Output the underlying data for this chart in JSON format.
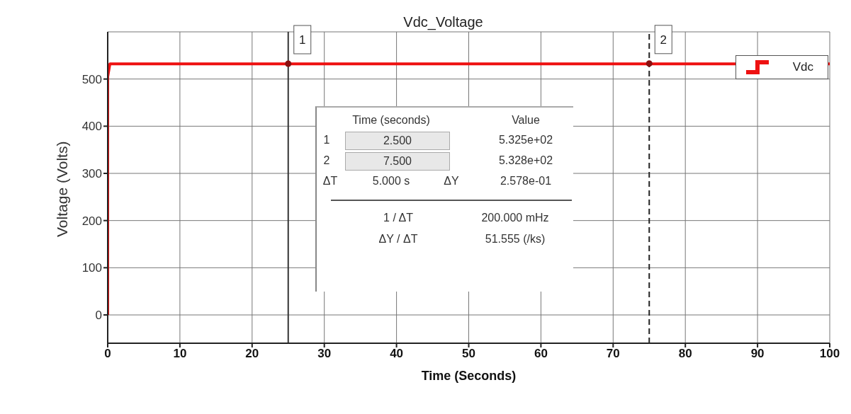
{
  "chart_data": {
    "type": "line",
    "title": "Vdc_Voltage",
    "xlabel": "Time (Seconds)",
    "ylabel": "Voltage (Volts)",
    "series": [
      {
        "name": "Vdc",
        "color": "#ee1111",
        "x": [
          0,
          0,
          0.3,
          100
        ],
        "values": [
          0,
          505,
          532,
          532
        ]
      },
      {
        "type": "scatter",
        "marker": "circle",
        "color": "#8b1010",
        "x": [
          25,
          75
        ],
        "values": [
          532.5,
          532.8
        ]
      }
    ],
    "xlim": [
      0,
      100
    ],
    "xticks": [
      0,
      10,
      20,
      30,
      40,
      50,
      60,
      70,
      80,
      90,
      100
    ],
    "ylim": [
      -60,
      600
    ],
    "yticks": [
      0,
      100,
      200,
      300,
      400,
      500
    ],
    "grid": true,
    "legend": "top right",
    "line_style": "solid",
    "ref_lines": [
      {
        "axis": "x",
        "value": 25,
        "line_style": "solid",
        "color": "#333333"
      },
      {
        "axis": "x",
        "value": 75,
        "line_style": "dashed",
        "color": "#222222"
      }
    ],
    "annotations": [
      {
        "text": "1",
        "x": 25,
        "y": 532.5
      },
      {
        "text": "2",
        "x": 75,
        "y": 532.8
      },
      "Time (seconds)",
      "Value",
      "1",
      "2.500",
      "5.325e+02",
      "2",
      "7.500",
      "5.328e+02",
      "ΔT",
      "5.000 s",
      "ΔY",
      "2.578e-01",
      "1 / ΔT",
      "200.000 mHz",
      "ΔY / ΔT",
      "51.555 (/ks)"
    ]
  }
}
